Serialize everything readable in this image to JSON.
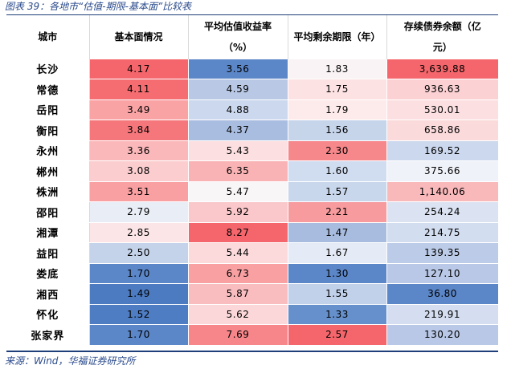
{
  "title": "图表 39：各地市“估值-期限-基本面”比较表",
  "source": "来源：Wind，华福证券研究所",
  "headers": [
    "城市",
    "基本面情况",
    "平均估值收益率\n（%）",
    "平均剩余期限（年）",
    "存续债券余额（亿\n元）"
  ],
  "rows": [
    {
      "city": "长沙",
      "fund": "4.17",
      "yield": "3.56",
      "term": "1.83",
      "balance": "3,639.88"
    },
    {
      "city": "常德",
      "fund": "4.11",
      "yield": "4.59",
      "term": "1.75",
      "balance": "936.63"
    },
    {
      "city": "岳阳",
      "fund": "3.49",
      "yield": "4.88",
      "term": "1.79",
      "balance": "530.01"
    },
    {
      "city": "衡阳",
      "fund": "3.84",
      "yield": "4.37",
      "term": "1.56",
      "balance": "658.86"
    },
    {
      "city": "永州",
      "fund": "3.36",
      "yield": "5.43",
      "term": "2.30",
      "balance": "169.52"
    },
    {
      "city": "郴州",
      "fund": "3.08",
      "yield": "6.35",
      "term": "1.60",
      "balance": "375.66"
    },
    {
      "city": "株洲",
      "fund": "3.51",
      "yield": "5.47",
      "term": "1.57",
      "balance": "1,140.06"
    },
    {
      "city": "邵阳",
      "fund": "2.79",
      "yield": "5.92",
      "term": "2.21",
      "balance": "254.24"
    },
    {
      "city": "湘潭",
      "fund": "2.85",
      "yield": "8.27",
      "term": "1.47",
      "balance": "214.75"
    },
    {
      "city": "益阳",
      "fund": "2.50",
      "yield": "5.44",
      "term": "1.67",
      "balance": "139.35"
    },
    {
      "city": "娄底",
      "fund": "1.70",
      "yield": "6.73",
      "term": "1.30",
      "balance": "127.10"
    },
    {
      "city": "湘西",
      "fund": "1.49",
      "yield": "5.87",
      "term": "1.55",
      "balance": "36.80"
    },
    {
      "city": "怀化",
      "fund": "1.52",
      "yield": "5.62",
      "term": "1.33",
      "balance": "219.91"
    },
    {
      "city": "张家界",
      "fund": "1.70",
      "yield": "7.69",
      "term": "2.57",
      "balance": "130.20"
    }
  ],
  "colors": {
    "fund": [
      "#f4666b",
      "#f56d71",
      "#f9a3a5",
      "#f5777b",
      "#fab8ba",
      "#fbcdcf",
      "#f9a0a2",
      "#e9edf6",
      "#fbe5e6",
      "#c5d3ea",
      "#5b86c8",
      "#4d7bc2",
      "#4f7dc3",
      "#5b86c8"
    ],
    "yield": [
      "#5b86c8",
      "#b9c9e5",
      "#ccd8ed",
      "#a9bde0",
      "#fcdfe0",
      "#f9b3b5",
      "#f9f6f8",
      "#fac8ca",
      "#f4666b",
      "#fcdadc",
      "#f8a0a2",
      "#fabdbf",
      "#fcd7d9",
      "#f6868a"
    ],
    "term": [
      "#f9f3f5",
      "#fde2e3",
      "#fdeaeb",
      "#c7d5eb",
      "#f6878a",
      "#d0dcef",
      "#c9d7ec",
      "#f79b9e",
      "#a7bcdf",
      "#e5ebf6",
      "#5b86c8",
      "#c2d1ea",
      "#6690cc",
      "#f4666b"
    ],
    "balance": [
      "#f4666b",
      "#fbd1d3",
      "#fce0e1",
      "#fbdadb",
      "#cbd8ee",
      "#f0f2f9",
      "#f9b9bb",
      "#dbe3f2",
      "#d3ddf0",
      "#bccbe7",
      "#b8c8e6",
      "#5b86c8",
      "#d4def0",
      "#b8c8e6"
    ]
  }
}
